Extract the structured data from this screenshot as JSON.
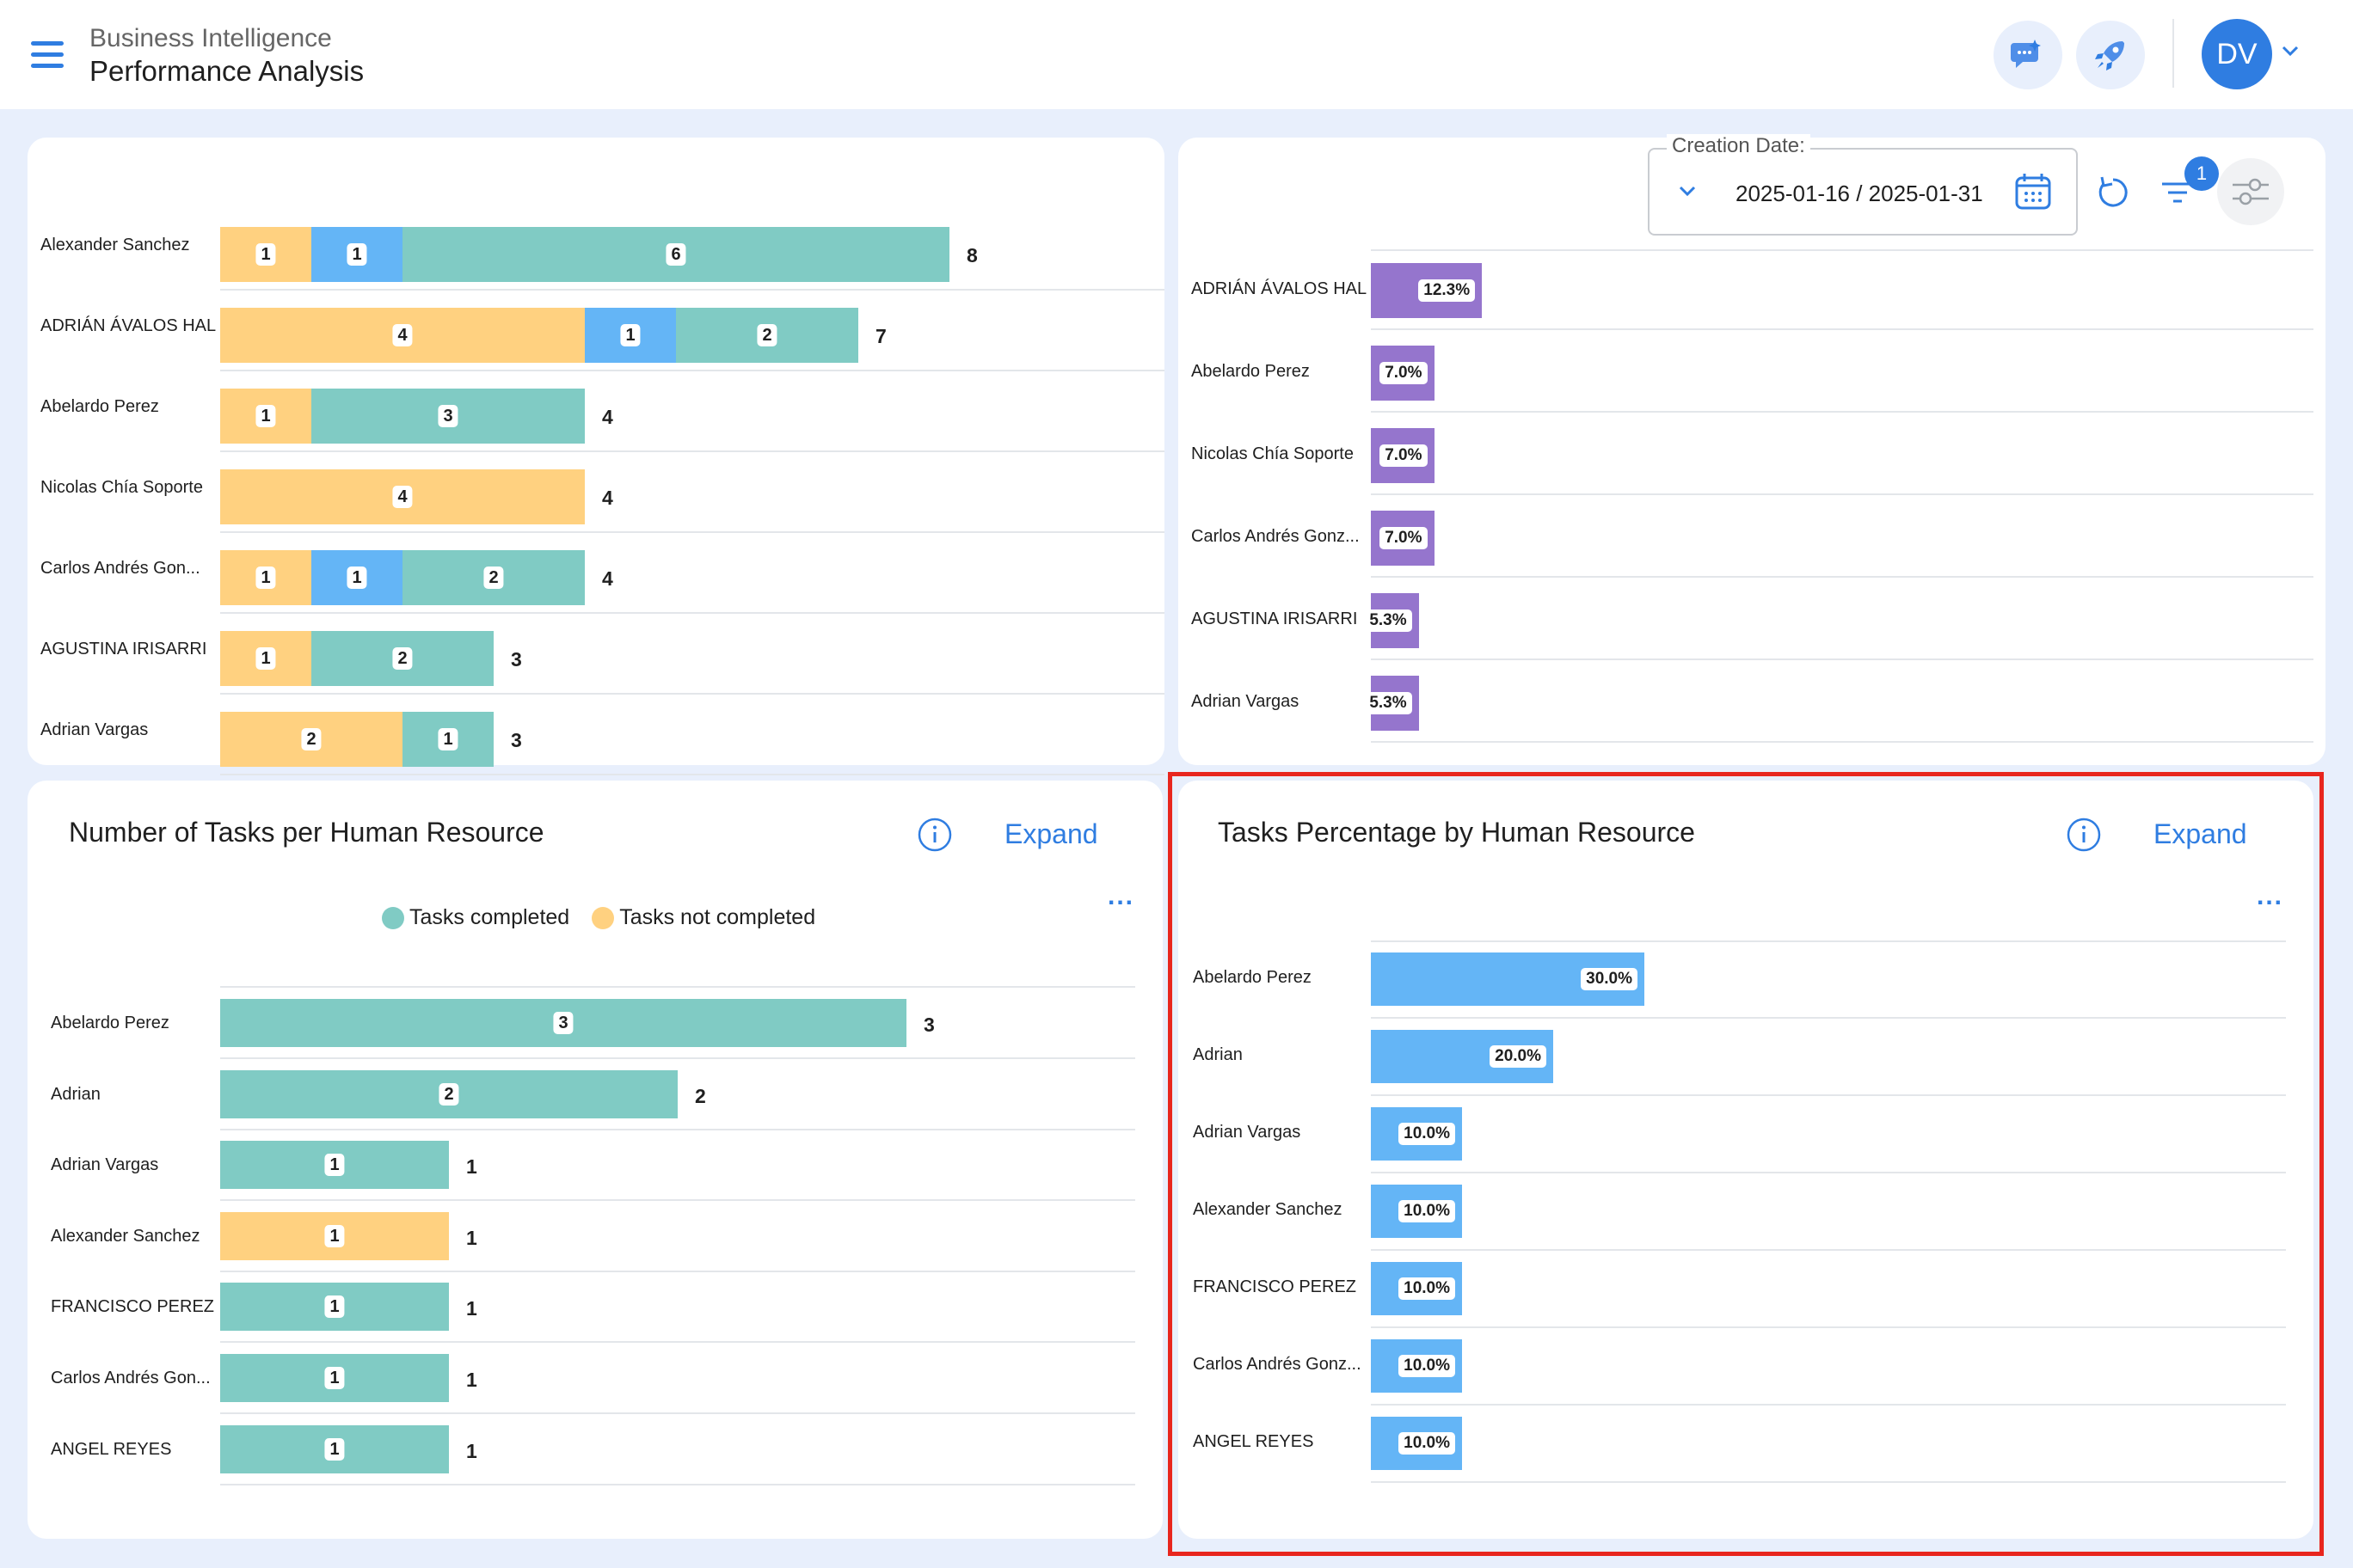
{
  "header": {
    "breadcrumb": "Business Intelligence",
    "title": "Performance Analysis",
    "avatar_initials": "DV"
  },
  "filters": {
    "date_label": "Creation Date:",
    "date_range": "2025-01-16 / 2025-01-31",
    "filter_count": "1"
  },
  "top_left_chart": {
    "rows": [
      {
        "name": "Alexander Sanchez",
        "segments": [
          {
            "color": "yellow",
            "value": "1"
          },
          {
            "color": "blue",
            "value": "1"
          },
          {
            "color": "teal",
            "value": "6"
          }
        ],
        "total": "8"
      },
      {
        "name": "ADRIÁN ÁVALOS HAL",
        "segments": [
          {
            "color": "yellow",
            "value": "4"
          },
          {
            "color": "blue",
            "value": "1"
          },
          {
            "color": "teal",
            "value": "2"
          }
        ],
        "total": "7"
      },
      {
        "name": "Abelardo Perez",
        "segments": [
          {
            "color": "yellow",
            "value": "1"
          },
          {
            "color": "teal",
            "value": "3"
          }
        ],
        "total": "4"
      },
      {
        "name": "Nicolas Chía Soporte",
        "segments": [
          {
            "color": "yellow",
            "value": "4"
          }
        ],
        "total": "4"
      },
      {
        "name": "Carlos Andrés Gon...",
        "segments": [
          {
            "color": "yellow",
            "value": "1"
          },
          {
            "color": "blue",
            "value": "1"
          },
          {
            "color": "teal",
            "value": "2"
          }
        ],
        "total": "4"
      },
      {
        "name": "AGUSTINA IRISARRI",
        "segments": [
          {
            "color": "yellow",
            "value": "1"
          },
          {
            "color": "teal",
            "value": "2"
          }
        ],
        "total": "3"
      },
      {
        "name": "Adrian Vargas",
        "segments": [
          {
            "color": "yellow",
            "value": "2"
          },
          {
            "color": "teal",
            "value": "1"
          }
        ],
        "total": "3"
      }
    ]
  },
  "top_right_chart": {
    "rows": [
      {
        "name": "ADRIÁN ÁVALOS HAL",
        "value": "12.3%"
      },
      {
        "name": "Abelardo Perez",
        "value": "7.0%"
      },
      {
        "name": "Nicolas Chía Soporte",
        "value": "7.0%"
      },
      {
        "name": "Carlos Andrés Gonz...",
        "value": "7.0%"
      },
      {
        "name": "AGUSTINA IRISARRI",
        "value": "5.3%"
      },
      {
        "name": "Adrian Vargas",
        "value": "5.3%"
      }
    ]
  },
  "bottom_left": {
    "title": "Number of Tasks per Human Resource",
    "expand": "Expand",
    "more": "...",
    "legend": [
      {
        "label": "Tasks completed",
        "color": "#80cbc4"
      },
      {
        "label": "Tasks not completed",
        "color": "#ffd180"
      }
    ]
  },
  "bottom_right": {
    "title": "Tasks Percentage by Human Resource",
    "expand": "Expand",
    "more": "..."
  },
  "colors": {
    "teal": "#80cbc4",
    "yellow": "#ffd180",
    "blue": "#64b5f6",
    "purple": "#9575cd",
    "accent": "#2f7de1",
    "highlight": "#e8261e"
  },
  "chart_data": [
    {
      "type": "bar",
      "orientation": "horizontal",
      "title": "Number of Tasks per Human Resource",
      "categories": [
        "Abelardo Perez",
        "Adrian",
        "Adrian Vargas",
        "Alexander Sanchez",
        "FRANCISCO PEREZ",
        "Carlos Andrés Gon...",
        "ANGEL REYES"
      ],
      "series": [
        {
          "name": "Tasks completed",
          "values": [
            3,
            2,
            1,
            0,
            1,
            1,
            1
          ]
        },
        {
          "name": "Tasks not completed",
          "values": [
            0,
            0,
            0,
            1,
            0,
            0,
            0
          ]
        }
      ],
      "totals": [
        3,
        2,
        1,
        1,
        1,
        1,
        1
      ],
      "xlim": [
        0,
        3
      ],
      "legend": "top"
    },
    {
      "type": "bar",
      "orientation": "horizontal",
      "title": "Tasks Percentage by Human Resource",
      "categories": [
        "Abelardo Perez",
        "Adrian",
        "Adrian Vargas",
        "Alexander Sanchez",
        "FRANCISCO PEREZ",
        "Carlos Andrés Gonz...",
        "ANGEL REYES"
      ],
      "values": [
        30.0,
        20.0,
        10.0,
        10.0,
        10.0,
        10.0,
        10.0
      ],
      "value_labels": [
        "30.0%",
        "20.0%",
        "10.0%",
        "10.0%",
        "10.0%",
        "10.0%",
        "10.0%"
      ]
    }
  ]
}
